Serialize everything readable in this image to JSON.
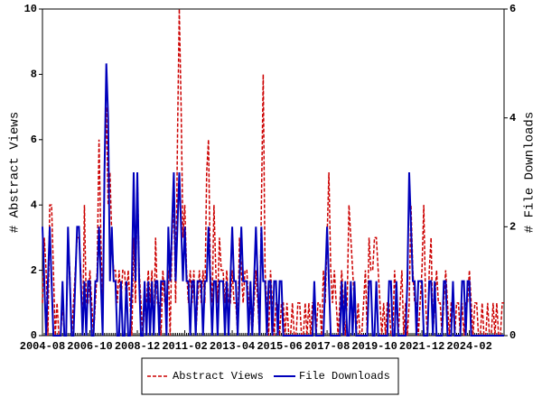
{
  "chart_data": {
    "type": "line",
    "categories": [
      "2004-08",
      null,
      null,
      null,
      null,
      null,
      null,
      null,
      null,
      null,
      null,
      null,
      null,
      null,
      null,
      null,
      null,
      null,
      null,
      null,
      null,
      null,
      null,
      null,
      null,
      null,
      "2006-10",
      null,
      null,
      null,
      null,
      null,
      null,
      null,
      null,
      null,
      null,
      null,
      null,
      null,
      null,
      null,
      null,
      null,
      null,
      null,
      null,
      null,
      null,
      null,
      null,
      null,
      "2008-12",
      null,
      null,
      null,
      null,
      null,
      null,
      null,
      null,
      null,
      null,
      null,
      null,
      null,
      null,
      null,
      null,
      null,
      null,
      null,
      null,
      null,
      null,
      null,
      null,
      null,
      "2011-02",
      null,
      null,
      null,
      null,
      null,
      null,
      null,
      null,
      null,
      null,
      null,
      null,
      null,
      null,
      null,
      null,
      null,
      null,
      null,
      null,
      null,
      null,
      null,
      null,
      null,
      "2013-04",
      null,
      null,
      null,
      null,
      null,
      null,
      null,
      null,
      null,
      null,
      null,
      null,
      null,
      null,
      null,
      null,
      null,
      null,
      null,
      null,
      null,
      null,
      null,
      null,
      null,
      "2015-06",
      null,
      null,
      null,
      null,
      null,
      null,
      null,
      null,
      null,
      null,
      null,
      null,
      null,
      null,
      null,
      null,
      null,
      null,
      null,
      null,
      null,
      null,
      null,
      null,
      null,
      "2017-08",
      null,
      null,
      null,
      null,
      null,
      null,
      null,
      null,
      null,
      null,
      null,
      null,
      null,
      null,
      null,
      null,
      null,
      null,
      null,
      null,
      null,
      null,
      null,
      null,
      null,
      "2019-10",
      null,
      null,
      null,
      null,
      null,
      null,
      null,
      null,
      null,
      null,
      null,
      null,
      null,
      null,
      null,
      null,
      null,
      null,
      null,
      null,
      null,
      null,
      null,
      null,
      null,
      "2021-12",
      null,
      null,
      null,
      null,
      null,
      null,
      null,
      null,
      null,
      null,
      null,
      null,
      null,
      null,
      null,
      null,
      null,
      null,
      null,
      null,
      null,
      null,
      null,
      null,
      null,
      "2024-02",
      null,
      null,
      null,
      null,
      null,
      null,
      null,
      null,
      null,
      null,
      null,
      null,
      null,
      null,
      null,
      null,
      null,
      null,
      null
    ],
    "series": [
      {
        "name": "Abstract Views",
        "color": "#cc0000",
        "dashed": true,
        "values": [
          1,
          3,
          2,
          0,
          4,
          4,
          2,
          0,
          1,
          0,
          0,
          1,
          0,
          0,
          3,
          2,
          0,
          1,
          2,
          3,
          3,
          2,
          0,
          4,
          1,
          1,
          2,
          1,
          0,
          1,
          2,
          6,
          3,
          1,
          5,
          7,
          4,
          5,
          3,
          2,
          2,
          1,
          2,
          1,
          2,
          2,
          1,
          2,
          1,
          0,
          3,
          1,
          5,
          2,
          1,
          0,
          1,
          1,
          2,
          1,
          2,
          0,
          3,
          1,
          1,
          0,
          2,
          1,
          1,
          2,
          0,
          3,
          4,
          1,
          6,
          10,
          7,
          3,
          4,
          2,
          1,
          2,
          1,
          2,
          0,
          1,
          2,
          1,
          2,
          1,
          5,
          6,
          2,
          1,
          4,
          2,
          1,
          3,
          2,
          2,
          1,
          2,
          1,
          1,
          2,
          1,
          1,
          0,
          3,
          2,
          1,
          2,
          2,
          1,
          1,
          0,
          1,
          2,
          1,
          0,
          4,
          8,
          2,
          1,
          0,
          2,
          1,
          0,
          1,
          1,
          0,
          1,
          1,
          0,
          1,
          0,
          0,
          1,
          0,
          0,
          1,
          1,
          0,
          0,
          1,
          0,
          1,
          0,
          1,
          1,
          0,
          1,
          1,
          0,
          2,
          1,
          3,
          5,
          2,
          1,
          2,
          1,
          0,
          1,
          2,
          1,
          0,
          1,
          4,
          3,
          2,
          1,
          0,
          1,
          0,
          0,
          1,
          2,
          0,
          3,
          2,
          2,
          3,
          3,
          2,
          1,
          0,
          1,
          0,
          1,
          1,
          0,
          0,
          2,
          1,
          0,
          1,
          2,
          0,
          1,
          0,
          1,
          4,
          2,
          1,
          1,
          0,
          1,
          2,
          4,
          1,
          0,
          2,
          3,
          0,
          1,
          2,
          1,
          1,
          0,
          1,
          2,
          1,
          0,
          1,
          1,
          0,
          1,
          1,
          0,
          1,
          0,
          1,
          1,
          2,
          1,
          0,
          1,
          1,
          0,
          0,
          1,
          0,
          0,
          1,
          0,
          0,
          1,
          0,
          1,
          0,
          0,
          1,
          1
        ]
      },
      {
        "name": "File Downloads",
        "color": "#0000bb",
        "dashed": false,
        "axis": "y2",
        "values": [
          2,
          1,
          0,
          1,
          2,
          1,
          0,
          0,
          0,
          0,
          0,
          1,
          0,
          0,
          2,
          1,
          0,
          0,
          1,
          2,
          2,
          1,
          0,
          1,
          0,
          1,
          1,
          0,
          0,
          1,
          1,
          2,
          1,
          0,
          3,
          5,
          4,
          1,
          2,
          1,
          1,
          0,
          0,
          1,
          0,
          0,
          1,
          0,
          0,
          1,
          3,
          1,
          3,
          1,
          0,
          0,
          1,
          0,
          1,
          0,
          1,
          0,
          1,
          1,
          0,
          1,
          1,
          1,
          0,
          2,
          1,
          2,
          3,
          1,
          2,
          3,
          2,
          1,
          2,
          1,
          1,
          0,
          1,
          1,
          0,
          1,
          1,
          1,
          0,
          1,
          1,
          2,
          1,
          0,
          1,
          1,
          0,
          1,
          1,
          1,
          0,
          1,
          0,
          1,
          2,
          1,
          1,
          0,
          1,
          2,
          1,
          1,
          1,
          0,
          1,
          0,
          1,
          2,
          1,
          0,
          2,
          1,
          1,
          0,
          1,
          1,
          0,
          1,
          1,
          0,
          1,
          1,
          0,
          0,
          0,
          0,
          0,
          0,
          0,
          0,
          0,
          0,
          0,
          0,
          0,
          0,
          0,
          0,
          0,
          1,
          0,
          0,
          0,
          0,
          0,
          1,
          2,
          1,
          0,
          0,
          0,
          0,
          0,
          0,
          1,
          0,
          1,
          0,
          0,
          1,
          0,
          1,
          0,
          0,
          0,
          0,
          0,
          0,
          0,
          1,
          1,
          0,
          0,
          1,
          0,
          0,
          0,
          0,
          0,
          0,
          1,
          1,
          0,
          0,
          1,
          0,
          0,
          0,
          0,
          0,
          1,
          3,
          2,
          1,
          1,
          0,
          1,
          1,
          1,
          0,
          0,
          0,
          1,
          1,
          0,
          1,
          0,
          0,
          0,
          0,
          1,
          1,
          0,
          0,
          0,
          1,
          0,
          0,
          0,
          0,
          1,
          1,
          0,
          1,
          1,
          0,
          0,
          0,
          0,
          0,
          0,
          0,
          0,
          0,
          0,
          0,
          0,
          0,
          0,
          0,
          0,
          0,
          0,
          0
        ]
      }
    ],
    "ylabel": "# Abstract Views",
    "y2label": "# File Downloads",
    "ylim": [
      0,
      10
    ],
    "yticks": [
      0,
      2,
      4,
      6,
      8,
      10
    ],
    "y2lim": [
      0,
      6
    ],
    "y2ticks": [
      0,
      2,
      4,
      6
    ],
    "legend": "bottom"
  }
}
